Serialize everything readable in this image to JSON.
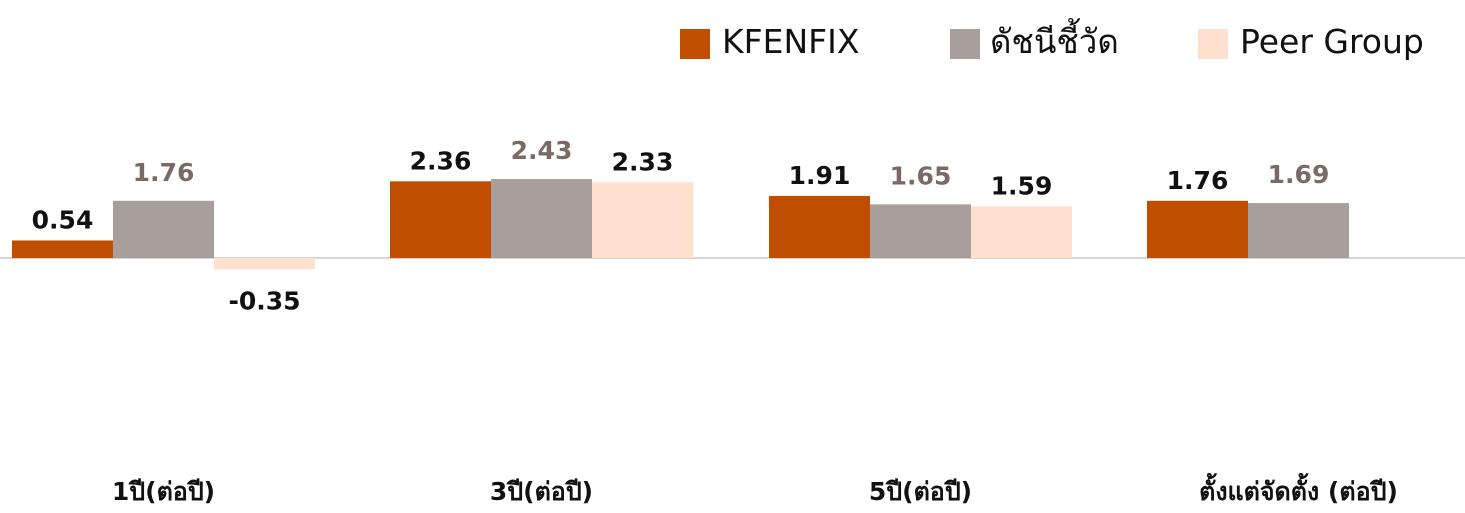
{
  "colors": {
    "kfenfix": "#C04E00",
    "benchmark": "#A89E9C",
    "peer": "#FDE0CD",
    "label_dark": "#111111",
    "label_gray": "#7A6A66",
    "axis": "#D9D4D2"
  },
  "chart_data": {
    "type": "bar",
    "categories": [
      "1ปี(ต่อปี)",
      "3ปี(ต่อปี)",
      "5ปี(ต่อปี)",
      "ตั้งแต่จัดตั้ง (ต่อปี)"
    ],
    "series": [
      {
        "name": "KFENFIX",
        "values": [
          0.54,
          2.36,
          1.91,
          1.76
        ],
        "labels": [
          "0.54",
          "2.36",
          "1.91",
          "1.76"
        ]
      },
      {
        "name": "ดัชนีชี้วัด",
        "values": [
          1.76,
          2.43,
          1.65,
          1.69
        ],
        "labels": [
          "1.76",
          "2.43",
          "1.65",
          "1.69"
        ]
      },
      {
        "name": "Peer Group",
        "values": [
          -0.35,
          2.33,
          1.59,
          null
        ],
        "labels": [
          "-0.35",
          "2.33",
          "1.59",
          ""
        ]
      }
    ],
    "legend_position": "top-right",
    "grid": false
  }
}
